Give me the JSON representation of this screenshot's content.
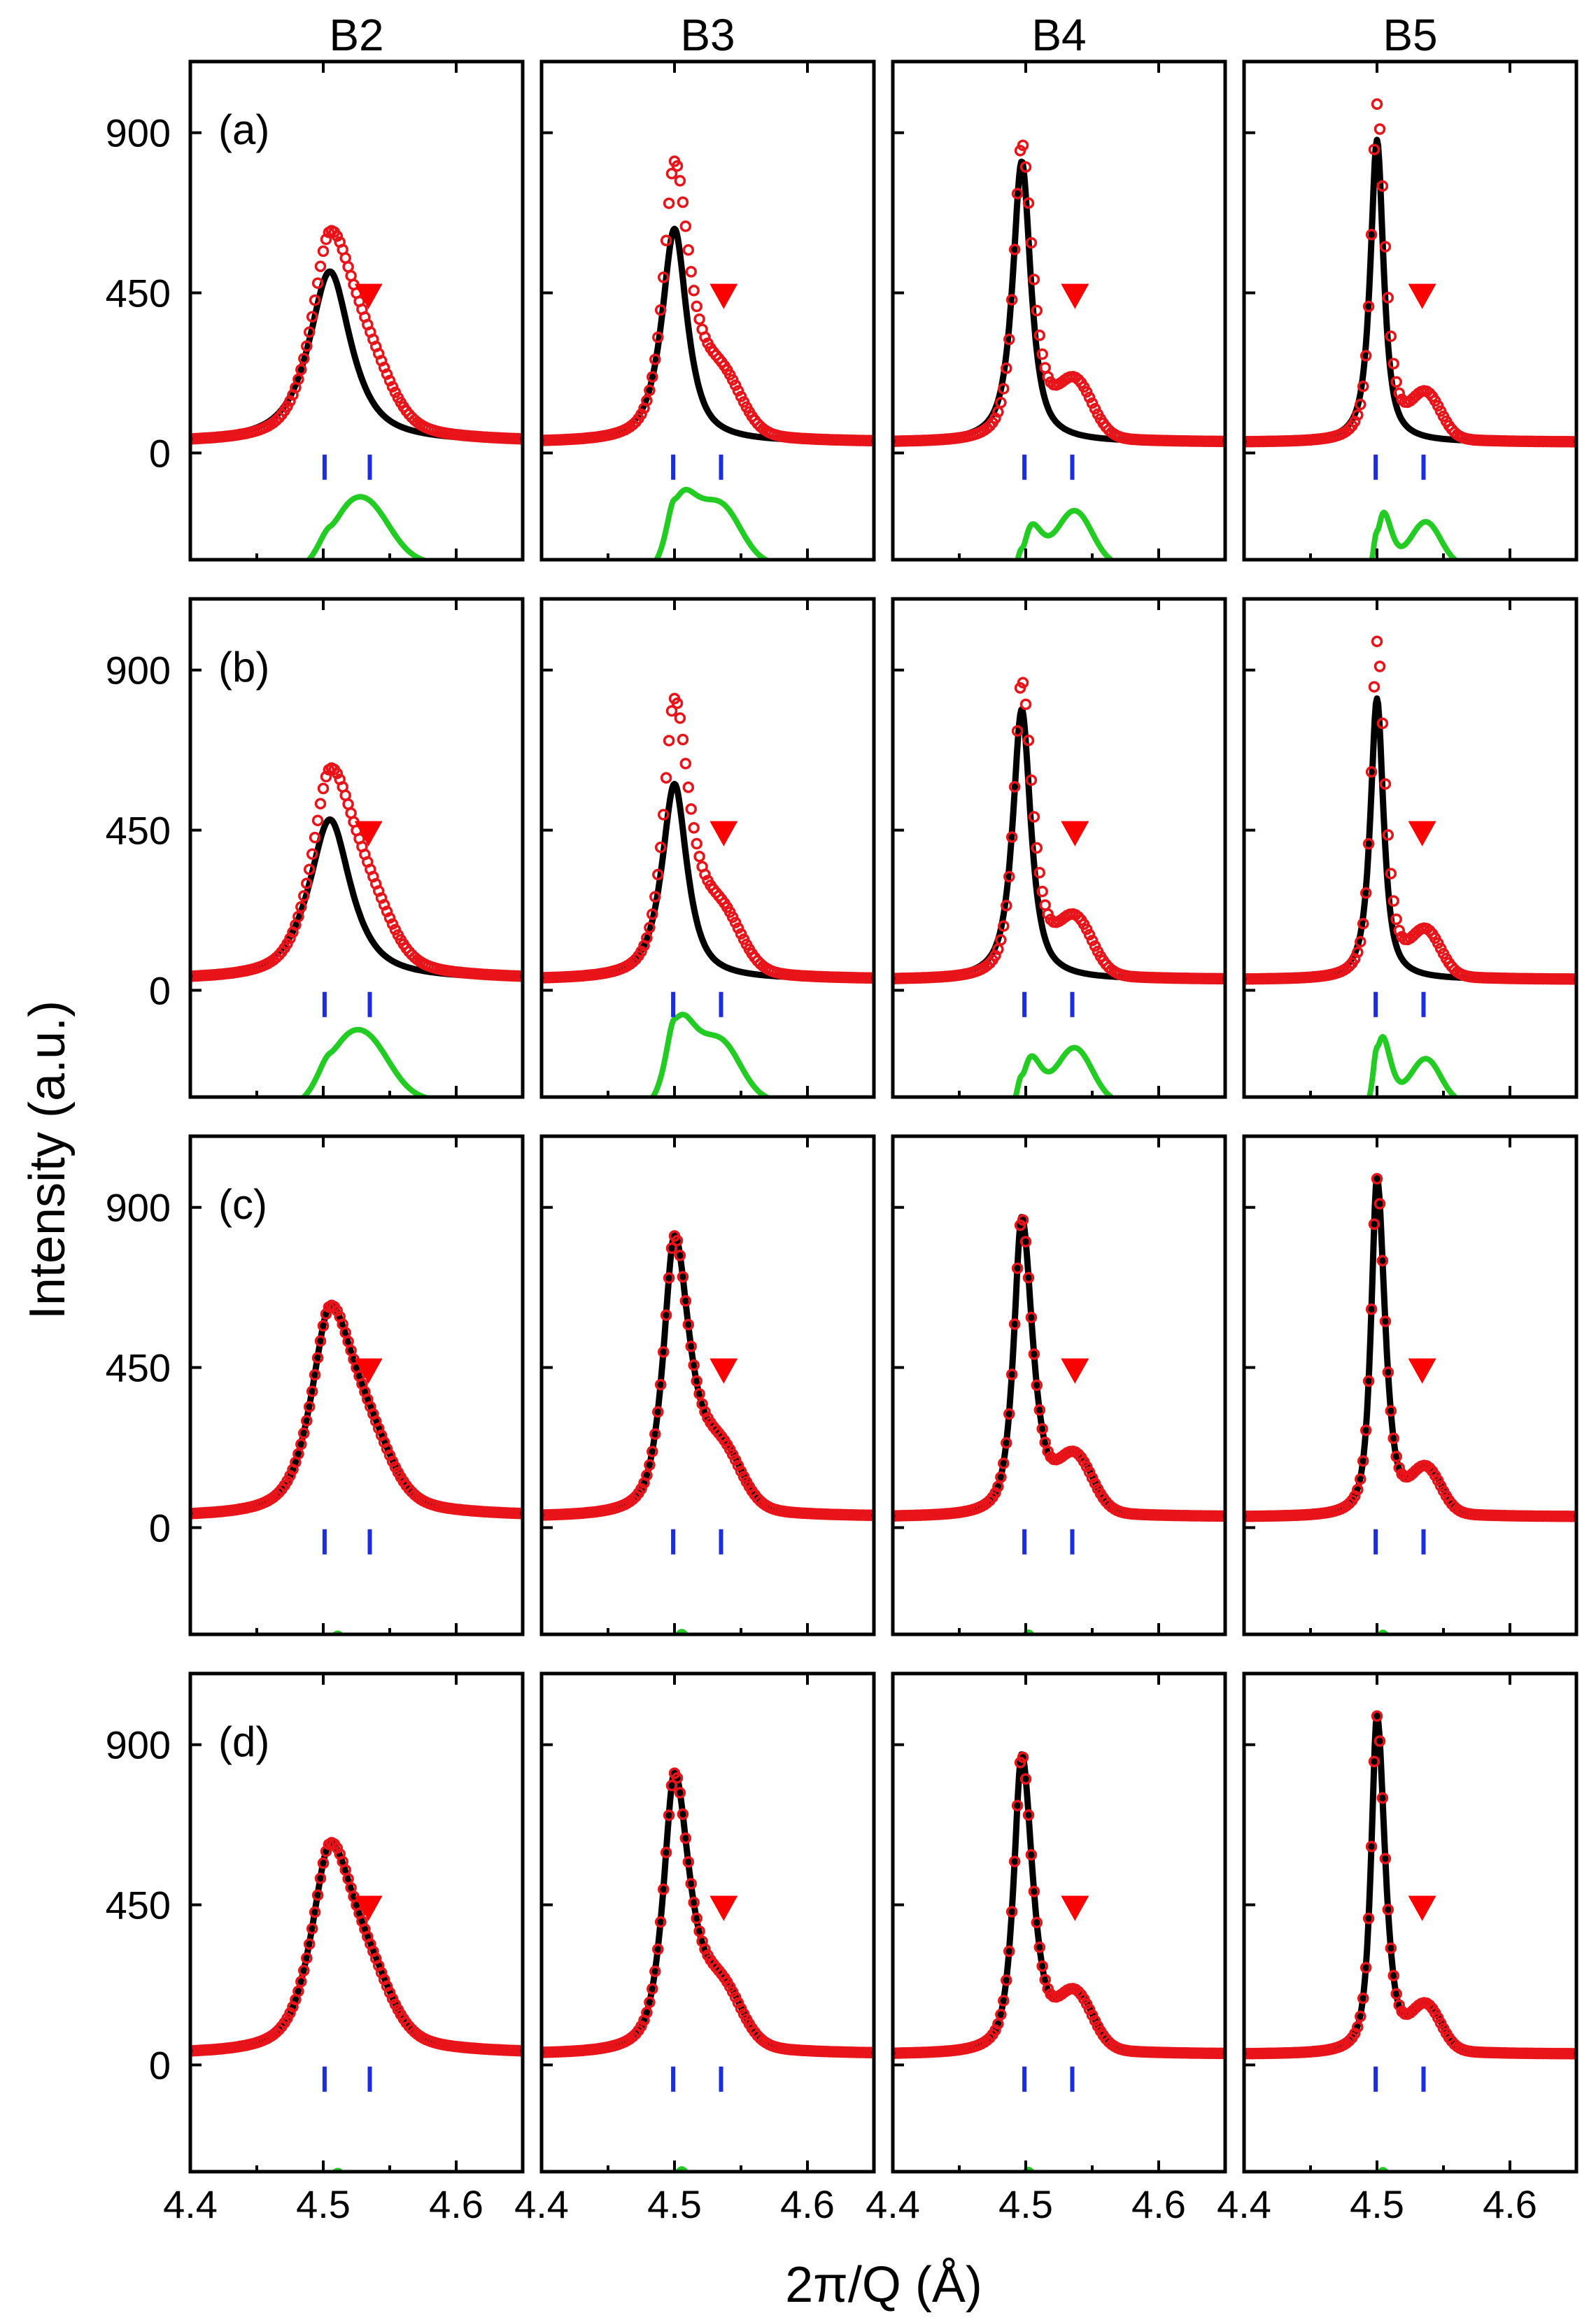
{
  "chart_data": {
    "type": "line",
    "layout": "grid 4 rows x 4 columns",
    "columns": [
      "B2",
      "B3",
      "B4",
      "B5"
    ],
    "rows": [
      "(a)",
      "(b)",
      "(c)",
      "(d)"
    ],
    "xlabel": "2π/Q (Å)",
    "ylabel": "Intensity (a.u.)",
    "xlim": [
      4.4,
      4.65
    ],
    "ylim": [
      -300,
      1100
    ],
    "x_ticks": [
      4.4,
      4.5,
      4.6
    ],
    "x_tick_labels": [
      "4.4",
      "4.5",
      "4.6"
    ],
    "y_ticks": [
      0,
      450,
      900
    ],
    "y_tick_labels": [
      "0",
      "450",
      "900"
    ],
    "colors": {
      "observed": "#e8141a",
      "calculated": "#000000",
      "difference": "#22cc22",
      "reflection_markers": "#1a2ee0",
      "triangle_marker": "#ff0000"
    },
    "series_styles": {
      "observed": "open red circles",
      "calculated": "black line",
      "difference": "green line, offset below zero",
      "reflection_markers": "blue vertical bars below zero"
    },
    "reflection_marker_y": -40,
    "triangle_marker_y": 440,
    "difference_offset": -320,
    "reflections": [
      {
        "column": "B2",
        "positions": [
          4.501,
          4.535
        ]
      },
      {
        "column": "B3",
        "positions": [
          4.499,
          4.535
        ]
      },
      {
        "column": "B4",
        "positions": [
          4.499,
          4.535
        ]
      },
      {
        "column": "B5",
        "positions": [
          4.499,
          4.535
        ]
      }
    ],
    "triangle_positions": [
      {
        "column": "B2",
        "x": 4.534
      },
      {
        "column": "B3",
        "x": 4.537
      },
      {
        "column": "B4",
        "x": 4.537
      },
      {
        "column": "B5",
        "x": 4.534
      }
    ],
    "observed_peaks": [
      {
        "column": "B2",
        "x": 4.505,
        "peak": 600,
        "background": 30,
        "shoulder_x": 4.535,
        "shoulder": 110
      },
      {
        "column": "B3",
        "x": 4.5,
        "peak": 810,
        "background": 30,
        "shoulder_x": 4.535,
        "shoulder": 150
      },
      {
        "column": "B4",
        "x": 4.497,
        "peak": 870,
        "background": 30,
        "shoulder_x": 4.537,
        "shoulder": 150
      },
      {
        "column": "B5",
        "x": 4.5,
        "peak": 980,
        "background": 30,
        "shoulder_x": 4.537,
        "shoulder": 120
      }
    ],
    "calculated_peaks": [
      {
        "row": "(a)",
        "column": "B2",
        "x": 4.505,
        "peak": 510
      },
      {
        "row": "(a)",
        "column": "B3",
        "x": 4.5,
        "peak": 630
      },
      {
        "row": "(a)",
        "column": "B4",
        "x": 4.497,
        "peak": 820
      },
      {
        "row": "(a)",
        "column": "B5",
        "x": 4.5,
        "peak": 880
      },
      {
        "row": "(b)",
        "column": "B2",
        "x": 4.505,
        "peak": 480
      },
      {
        "row": "(b)",
        "column": "B3",
        "x": 4.5,
        "peak": 580
      },
      {
        "row": "(b)",
        "column": "B4",
        "x": 4.497,
        "peak": 790
      },
      {
        "row": "(b)",
        "column": "B5",
        "x": 4.5,
        "peak": 820
      }
    ],
    "rows_c_d_fit": "calculated curve follows observed points closely, small difference"
  }
}
